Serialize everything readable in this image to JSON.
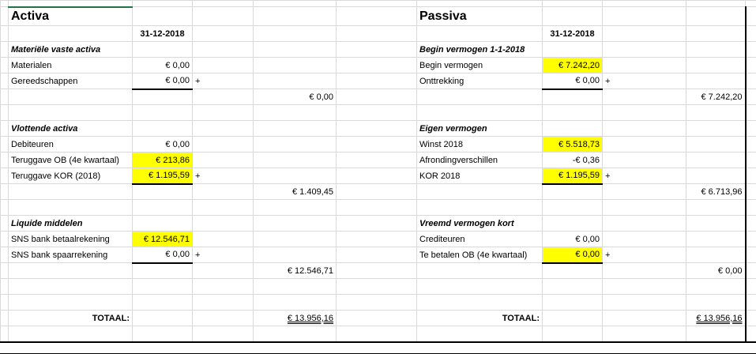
{
  "activa": {
    "title": "Activa",
    "date": "31-12-2018",
    "materiele": {
      "heading": "Materiële vaste activa",
      "items": [
        {
          "label": "Materialen",
          "value": "€ 0,00"
        },
        {
          "label": "Gereedschappen",
          "value": "€ 0,00"
        }
      ],
      "subtotal": "€ 0,00"
    },
    "vlottende": {
      "heading": "Vlottende activa",
      "items": [
        {
          "label": "Debiteuren",
          "value": "€ 0,00"
        },
        {
          "label": "Teruggave OB (4e kwartaal)",
          "value": "€ 213,86"
        },
        {
          "label": "Teruggave KOR (2018)",
          "value": "€ 1.195,59"
        }
      ],
      "subtotal": "€ 1.409,45"
    },
    "liquide": {
      "heading": "Liquide middelen",
      "items": [
        {
          "label": "SNS bank betaalrekening",
          "value": "€ 12.546,71"
        },
        {
          "label": "SNS bank spaarrekening",
          "value": "€ 0,00"
        }
      ],
      "subtotal": "€ 12.546,71"
    },
    "total_label": "TOTAAL:",
    "total": "€ 13.956,16"
  },
  "passiva": {
    "title": "Passiva",
    "date": "31-12-2018",
    "begin": {
      "heading": "Begin vermogen 1-1-2018",
      "items": [
        {
          "label": "Begin vermogen",
          "value": "€ 7.242,20"
        },
        {
          "label": "Onttrekking",
          "value": "€ 0,00"
        }
      ],
      "subtotal": "€ 7.242,20"
    },
    "eigen": {
      "heading": "Eigen vermogen",
      "items": [
        {
          "label": "Winst 2018",
          "value": "€ 5.518,73"
        },
        {
          "label": "Afrondingverschillen",
          "value": "-€ 0,36"
        },
        {
          "label": "KOR 2018",
          "value": "€ 1.195,59"
        }
      ],
      "subtotal": "€ 6.713,96"
    },
    "vreemd": {
      "heading": "Vreemd vermogen kort",
      "items": [
        {
          "label": "Crediteuren",
          "value": "€ 0,00"
        },
        {
          "label": "Te betalen OB (4e kwartaal)",
          "value": "€ 0,00"
        }
      ],
      "subtotal": "€ 0,00"
    },
    "total_label": "TOTAAL:",
    "total": "€ 13.956,16"
  },
  "plus": "+"
}
